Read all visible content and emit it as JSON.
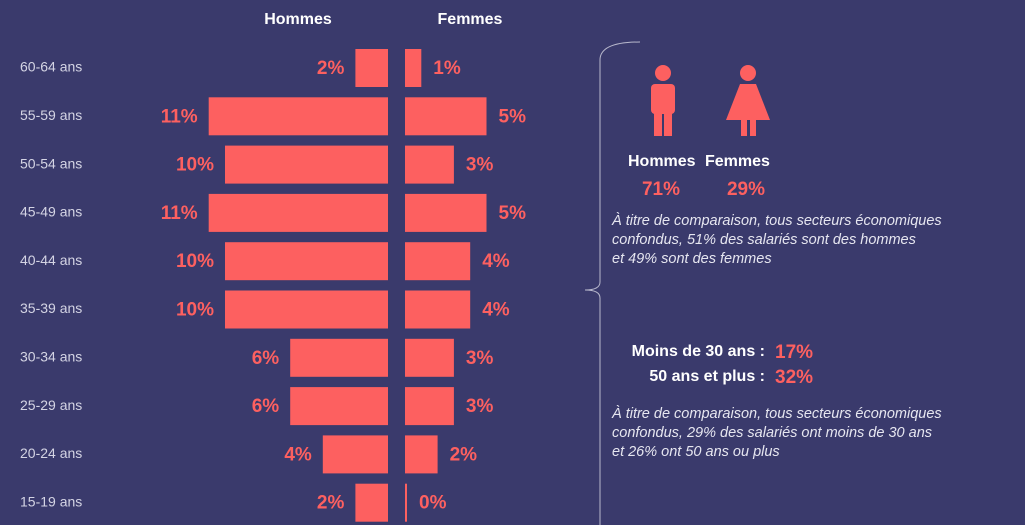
{
  "chart_data": {
    "type": "pyramid",
    "categories": [
      "60-64 ans",
      "55-59 ans",
      "50-54 ans",
      "45-49 ans",
      "40-44 ans",
      "35-39 ans",
      "30-34 ans",
      "25-29 ans",
      "20-24 ans",
      "15-19 ans"
    ],
    "series": [
      {
        "name": "Hommes",
        "color": "#fd6060",
        "values": [
          2,
          11,
          10,
          11,
          10,
          10,
          6,
          6,
          4,
          2
        ],
        "value_labels": [
          "2%",
          "11%",
          "10%",
          "11%",
          "10%",
          "10%",
          "6%",
          "6%",
          "4%",
          "2%"
        ]
      },
      {
        "name": "Femmes",
        "color": "#fd6060",
        "values": [
          1,
          5,
          3,
          5,
          4,
          4,
          3,
          3,
          2,
          0
        ],
        "value_labels": [
          "1%",
          "5%",
          "3%",
          "5%",
          "4%",
          "4%",
          "3%",
          "3%",
          "2%",
          "0%"
        ]
      }
    ]
  },
  "sidebar": {
    "gender": {
      "men_label": "Hommes",
      "women_label": "Femmes",
      "men_value": "71%",
      "women_value": "29%",
      "note": [
        "À titre de comparaison, tous secteurs économiques",
        "confondus, 51% des salariés sont des hommes",
        "et 49% sont des femmes"
      ]
    },
    "age": {
      "under30_label": "Moins de 30 ans :",
      "under30_value": "17%",
      "over50_label": "50 ans et plus :",
      "over50_value": "32%",
      "note": [
        "À titre de comparaison, tous secteurs économiques",
        "confondus, 29% des salariés ont moins de 30 ans",
        "et 26% ont 50 ans ou plus"
      ]
    }
  }
}
